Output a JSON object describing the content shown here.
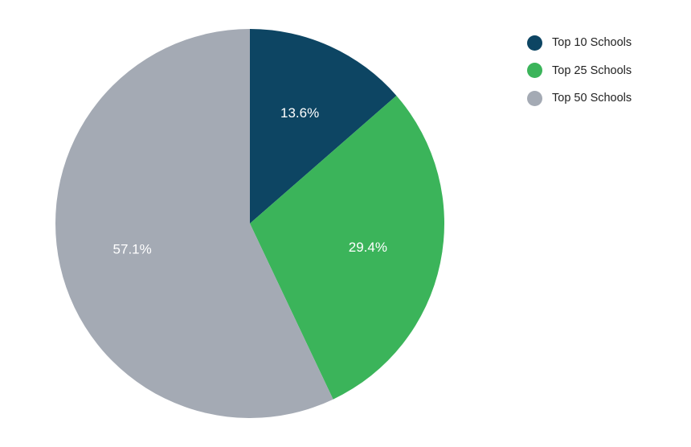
{
  "chart_data": {
    "type": "pie",
    "categories": [
      "Top 10 Schools",
      "Top 25 Schools",
      "Top 50 Schools"
    ],
    "values": [
      13.6,
      29.4,
      57.1
    ],
    "data_labels": [
      "13.6%",
      "29.4%",
      "57.1%"
    ],
    "colors": [
      "#0d4563",
      "#3bb45a",
      "#a4aab4"
    ],
    "title": "",
    "legend_position": "top-right",
    "start_angle": "12 o'clock, clockwise"
  },
  "legend": {
    "items": [
      {
        "label": "Top 10 Schools",
        "color": "#0d4563"
      },
      {
        "label": "Top 25 Schools",
        "color": "#3bb45a"
      },
      {
        "label": "Top 50 Schools",
        "color": "#a4aab4"
      }
    ]
  }
}
